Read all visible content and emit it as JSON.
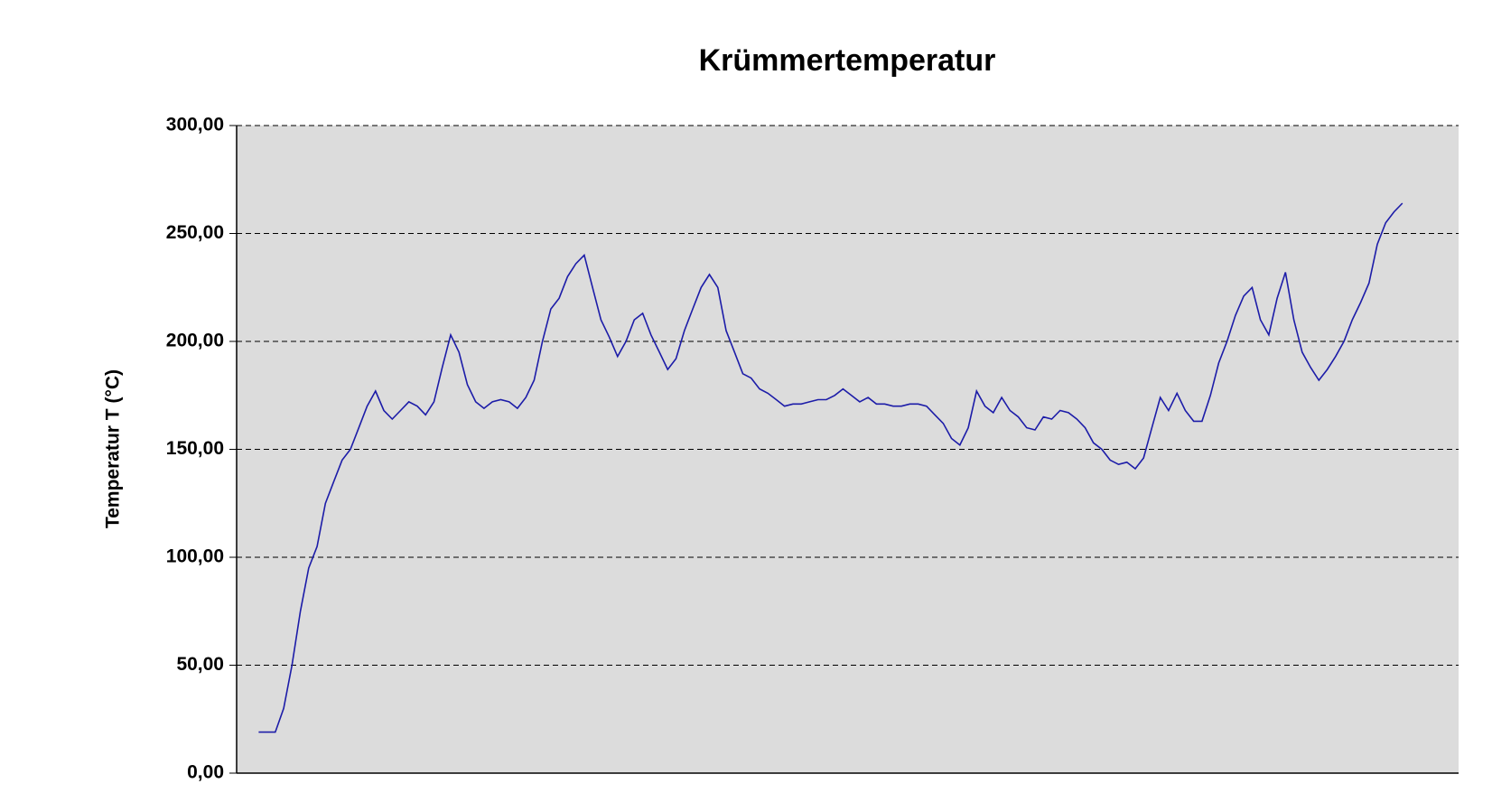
{
  "chart_data": {
    "type": "line",
    "title": "Krümmertemperatur",
    "y_label": "Temperatur T (°C)",
    "ylim": [
      0,
      300
    ],
    "yticks": [
      {
        "value": 0,
        "label": "0,00"
      },
      {
        "value": 50,
        "label": "50,00"
      },
      {
        "value": 100,
        "label": "100,00"
      },
      {
        "value": 150,
        "label": "150,00"
      },
      {
        "value": 200,
        "label": "200,00"
      },
      {
        "value": 250,
        "label": "250,00"
      },
      {
        "value": 300,
        "label": "300,00"
      }
    ],
    "grid": true,
    "color": "#1c1ca8",
    "background": "#dcdcdc",
    "values": [
      19,
      19,
      19,
      30,
      50,
      75,
      95,
      105,
      125,
      135,
      145,
      150,
      160,
      170,
      177,
      168,
      164,
      168,
      172,
      170,
      166,
      172,
      188,
      203,
      195,
      180,
      172,
      169,
      172,
      173,
      172,
      169,
      174,
      182,
      200,
      215,
      220,
      230,
      236,
      240,
      225,
      210,
      202,
      193,
      200,
      210,
      213,
      203,
      195,
      187,
      192,
      205,
      215,
      225,
      231,
      225,
      205,
      195,
      185,
      183,
      178,
      176,
      173,
      170,
      171,
      171,
      172,
      173,
      173,
      175,
      178,
      175,
      172,
      174,
      171,
      171,
      170,
      170,
      171,
      171,
      170,
      166,
      162,
      155,
      152,
      160,
      177,
      170,
      167,
      174,
      168,
      165,
      160,
      159,
      165,
      164,
      168,
      167,
      164,
      160,
      153,
      150,
      145,
      143,
      144,
      141,
      146,
      160,
      174,
      168,
      176,
      168,
      163,
      163,
      175,
      190,
      200,
      212,
      221,
      225,
      210,
      203,
      220,
      232,
      210,
      195,
      188,
      182,
      187,
      193,
      200,
      210,
      218,
      227,
      245,
      255,
      260,
      264
    ]
  }
}
